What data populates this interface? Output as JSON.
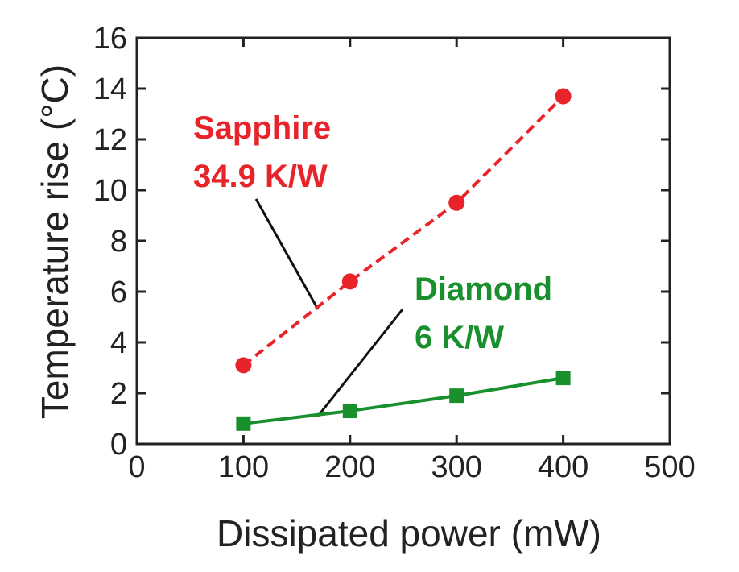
{
  "chart_data": {
    "type": "line",
    "title": "",
    "xlabel": "Dissipated power (mW)",
    "ylabel": "Temperature rise (°C)",
    "xlim": [
      0,
      500
    ],
    "ylim": [
      0,
      16
    ],
    "xticks": [
      0,
      100,
      200,
      300,
      400,
      500
    ],
    "yticks": [
      0,
      2,
      4,
      6,
      8,
      10,
      12,
      14,
      16
    ],
    "grid": false,
    "series": [
      {
        "name": "Sapphire",
        "color": "#e8232a",
        "marker": "circle",
        "line": "dashed",
        "x": [
          100,
          200,
          300,
          400
        ],
        "y": [
          3.1,
          6.4,
          9.5,
          13.7
        ]
      },
      {
        "name": "Diamond",
        "color": "#1a8f2e",
        "marker": "square",
        "line": "solid",
        "x": [
          100,
          200,
          300,
          400
        ],
        "y": [
          0.8,
          1.3,
          1.9,
          2.6
        ]
      }
    ],
    "annotations": [
      {
        "series": "Sapphire",
        "line1": "Sapphire",
        "line2": "34.9 K/W",
        "color": "#e8232a",
        "pointer_to": [
          170,
          5.3
        ]
      },
      {
        "series": "Diamond",
        "line1": "Diamond",
        "line2": "6 K/W",
        "color": "#1a8f2e",
        "pointer_to": [
          170,
          1.1
        ]
      }
    ]
  }
}
